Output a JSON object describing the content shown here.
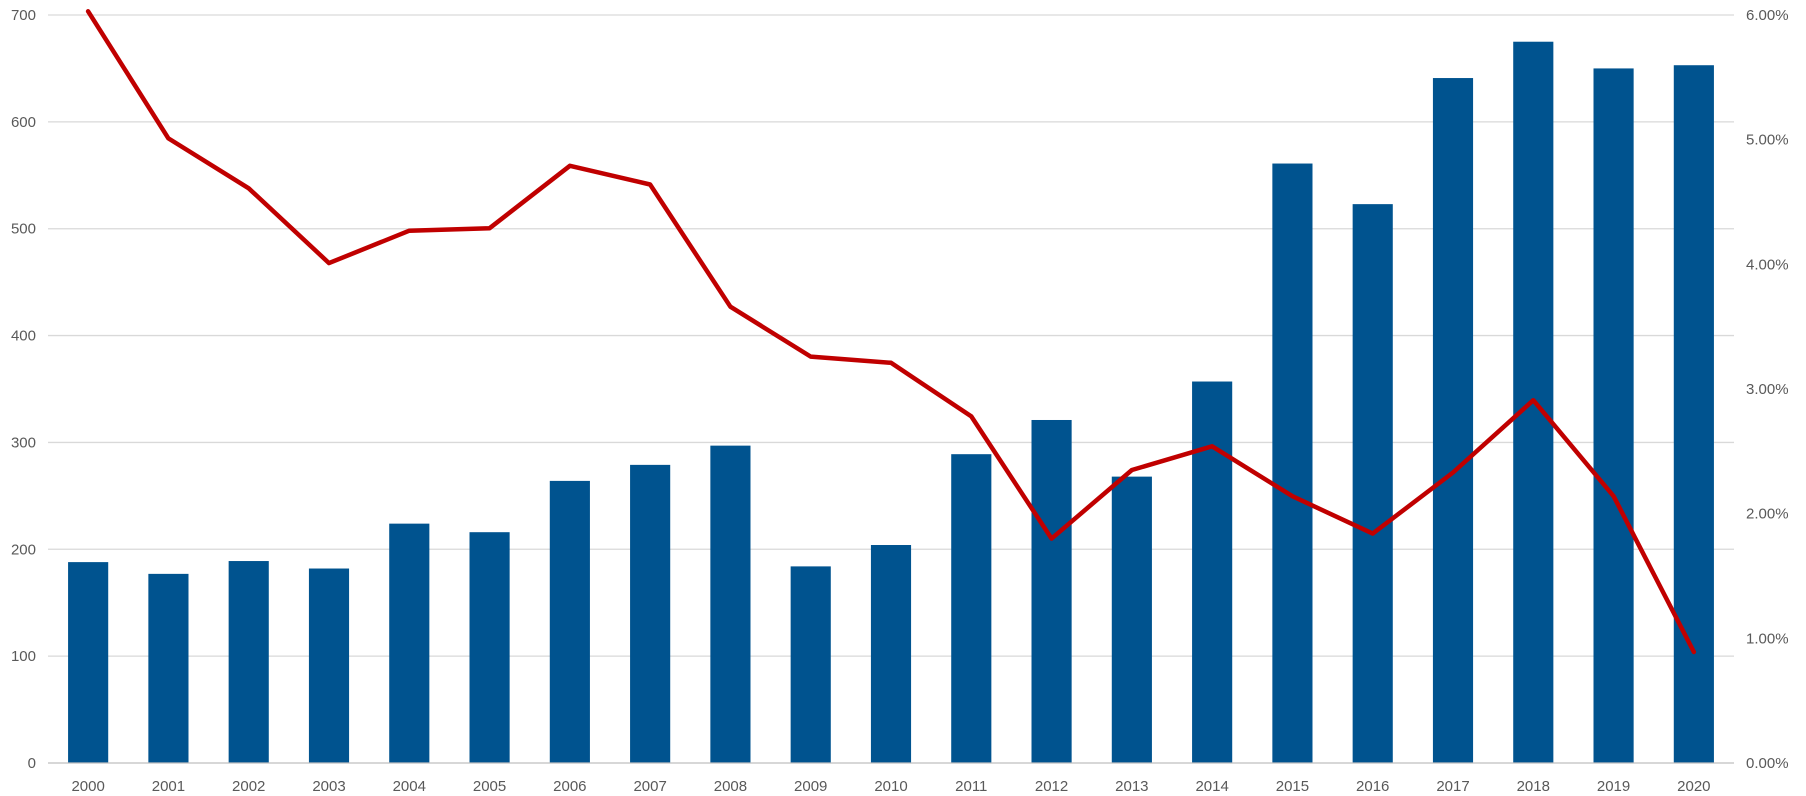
{
  "chart_data": {
    "type": "bar",
    "categories": [
      "2000",
      "2001",
      "2002",
      "2003",
      "2004",
      "2005",
      "2006",
      "2007",
      "2008",
      "2009",
      "2010",
      "2011",
      "2012",
      "2013",
      "2014",
      "2015",
      "2016",
      "2017",
      "2018",
      "2019",
      "2020"
    ],
    "series": [
      {
        "type": "bar",
        "axis": "left",
        "color": "#00538f",
        "values": [
          188,
          177,
          189,
          182,
          224,
          216,
          264,
          279,
          297,
          184,
          204,
          289,
          321,
          268,
          357,
          561,
          523,
          641,
          675,
          650,
          653
        ]
      },
      {
        "type": "line",
        "axis": "right",
        "color": "#c00000",
        "values": [
          6.03,
          5.01,
          4.61,
          4.01,
          4.27,
          4.29,
          4.79,
          4.64,
          3.66,
          3.26,
          3.21,
          2.78,
          1.8,
          2.35,
          2.54,
          2.14,
          1.84,
          2.33,
          2.91,
          2.14,
          0.89
        ]
      }
    ],
    "y_left": {
      "min": 0,
      "max": 700,
      "ticks": [
        "0",
        "100",
        "200",
        "300",
        "400",
        "500",
        "600",
        "700"
      ]
    },
    "y_right": {
      "min": 0,
      "max": 6,
      "ticks": [
        "0.00%",
        "1.00%",
        "2.00%",
        "3.00%",
        "4.00%",
        "5.00%",
        "6.00%"
      ]
    },
    "grid": true,
    "title": "",
    "xlabel": "",
    "ylabel": ""
  }
}
